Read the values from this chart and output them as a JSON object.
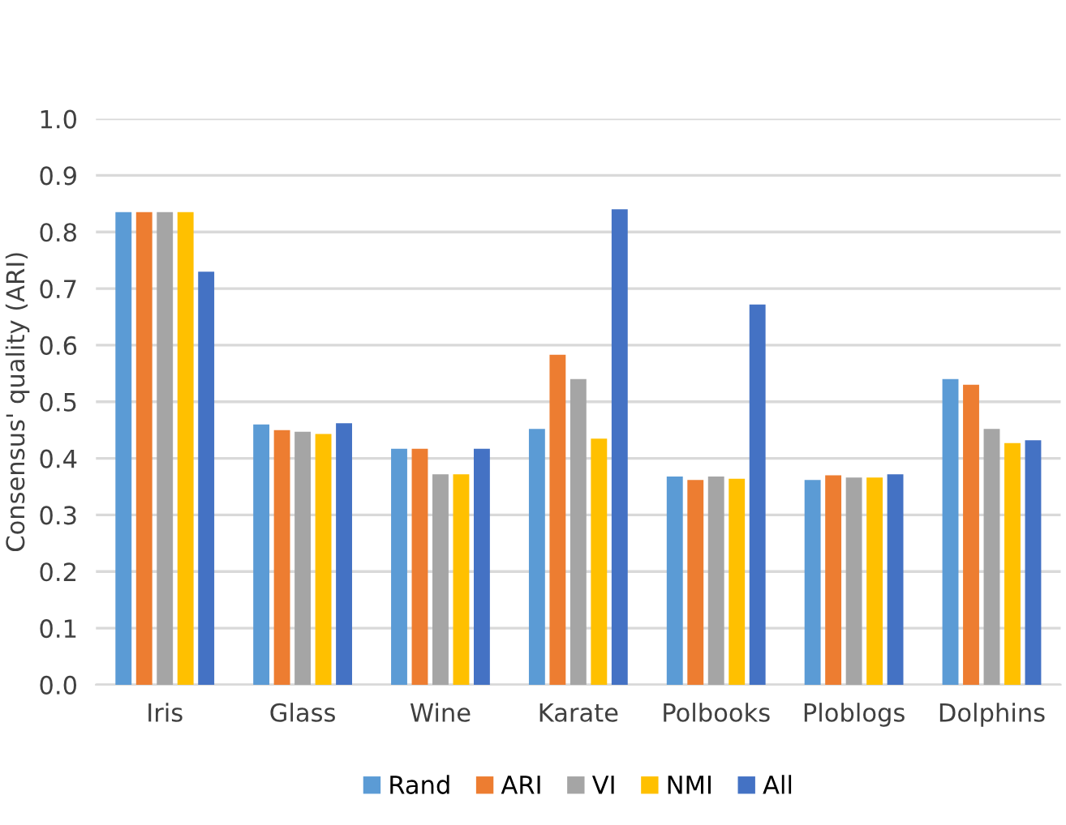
{
  "chart_data": {
    "type": "bar",
    "ylabel": "Consensus' quality (ARI)",
    "categories": [
      "Iris",
      "Glass",
      "Wine",
      "Karate",
      "Polbooks",
      "Ploblogs",
      "Dolphins"
    ],
    "series": [
      {
        "name": "Rand",
        "color": "#5b9bd5",
        "values": [
          0.835,
          0.46,
          0.417,
          0.452,
          0.368,
          0.362,
          0.54
        ]
      },
      {
        "name": "ARI",
        "color": "#ed7d31",
        "values": [
          0.835,
          0.45,
          0.417,
          0.583,
          0.362,
          0.37,
          0.53
        ]
      },
      {
        "name": "VI",
        "color": "#a5a5a5",
        "values": [
          0.835,
          0.447,
          0.372,
          0.54,
          0.368,
          0.366,
          0.452
        ]
      },
      {
        "name": "NMI",
        "color": "#ffc000",
        "values": [
          0.835,
          0.443,
          0.372,
          0.435,
          0.364,
          0.366,
          0.427
        ]
      },
      {
        "name": "All",
        "color": "#4472c4",
        "values": [
          0.73,
          0.462,
          0.417,
          0.84,
          0.672,
          0.372,
          0.432
        ]
      }
    ],
    "ylim": [
      0,
      1.0
    ],
    "yticks": [
      {
        "value": 0,
        "label": "0.0"
      },
      {
        "value": 0.1,
        "label": "0.1"
      },
      {
        "value": 0.2,
        "label": "0.2"
      },
      {
        "value": 0.3,
        "label": "0.3"
      },
      {
        "value": 0.4,
        "label": "0.4"
      },
      {
        "value": 0.5,
        "label": "0.5"
      },
      {
        "value": 0.6,
        "label": "0.6"
      },
      {
        "value": 0.7,
        "label": "0.7"
      },
      {
        "value": 0.8,
        "label": "0.8"
      },
      {
        "value": 0.9,
        "label": "0.9"
      },
      {
        "value": 1.0,
        "label": "1.0"
      }
    ],
    "grid": "y",
    "legend": "bottom"
  }
}
